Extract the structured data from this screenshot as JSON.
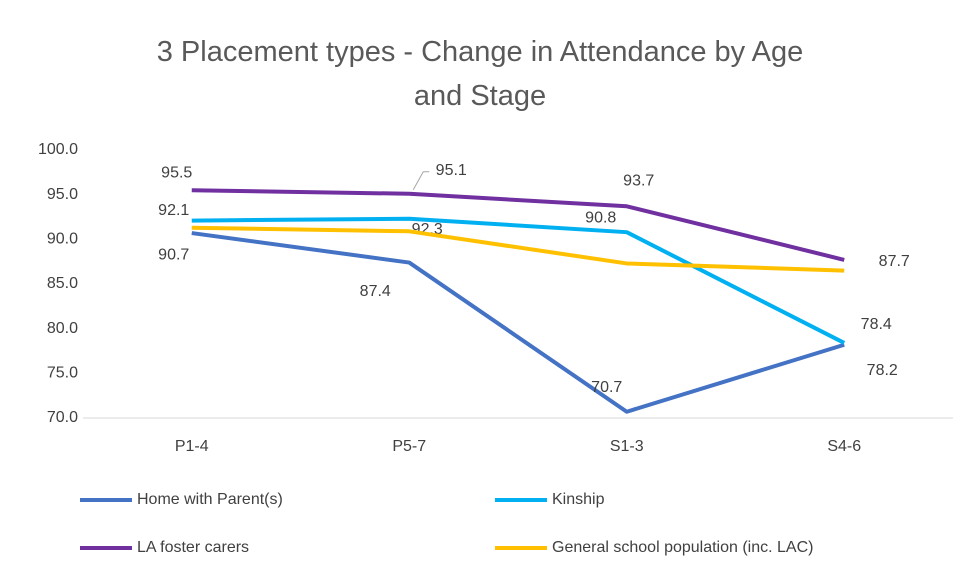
{
  "chart_data": {
    "type": "line",
    "title": "3 Placement types - Change in Attendance by Age and Stage",
    "categories": [
      "P1-4",
      "P5-7",
      "S1-3",
      "S4-6"
    ],
    "series": [
      {
        "name": "Home with Parent(s)",
        "color": "#4472c4",
        "values": [
          90.7,
          87.4,
          70.7,
          78.2
        ],
        "data_labels": true
      },
      {
        "name": "Kinship",
        "color": "#00b0f0",
        "values": [
          92.1,
          92.3,
          90.8,
          78.4
        ],
        "data_labels": true
      },
      {
        "name": "LA foster carers",
        "color": "#7030a0",
        "values": [
          95.5,
          95.1,
          93.7,
          87.7
        ],
        "data_labels": true
      },
      {
        "name": "General school population (inc. LAC)",
        "color": "#ffc000",
        "values": [
          91.3,
          90.9,
          87.3,
          86.5
        ],
        "data_labels": false
      }
    ],
    "ylim": [
      70,
      100
    ],
    "yticks": [
      {
        "value": 70,
        "label": "70.0"
      },
      {
        "value": 75,
        "label": "75.0"
      },
      {
        "value": 80,
        "label": "80.0"
      },
      {
        "value": 85,
        "label": "85.0"
      },
      {
        "value": 90,
        "label": "90.0"
      },
      {
        "value": 95,
        "label": "95.0"
      },
      {
        "value": 100,
        "label": "100.0"
      }
    ],
    "grid": false,
    "legend": "bottom"
  }
}
